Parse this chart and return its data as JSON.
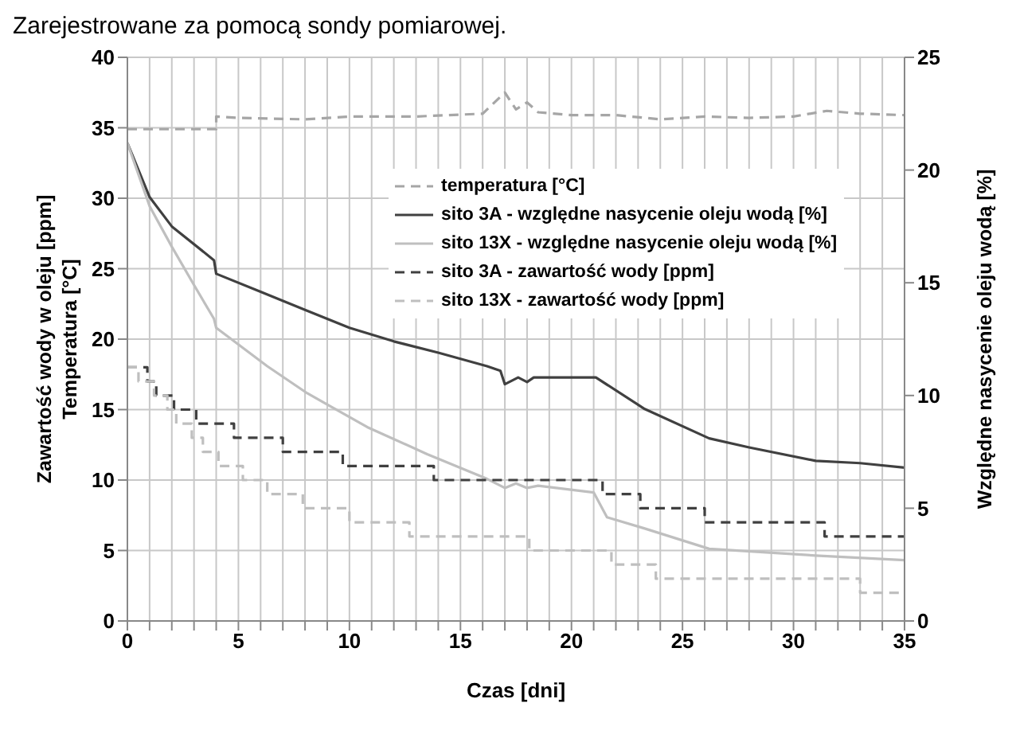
{
  "chart_data": {
    "type": "line",
    "annotations": [
      "Zarejestrowane za pomocą sondy pomiarowej."
    ],
    "xlabel": "Czas [dni]",
    "ylabel": "Zawartość wody w oleju [ppm]\nTemperatura [°C]",
    "y2label": "Względne nasycenie oleju wodą [%]",
    "xlim": [
      0,
      35
    ],
    "xticks": [
      0,
      {
        "value": 1,
        "label": null
      },
      {
        "value": 2,
        "label": null
      },
      {
        "value": 3,
        "label": null
      },
      {
        "value": 4,
        "label": null
      },
      5,
      {
        "value": 6,
        "label": null
      },
      {
        "value": 7,
        "label": null
      },
      {
        "value": 8,
        "label": null
      },
      {
        "value": 9,
        "label": null
      },
      10,
      {
        "value": 11,
        "label": null
      },
      {
        "value": 12,
        "label": null
      },
      {
        "value": 13,
        "label": null
      },
      {
        "value": 14,
        "label": null
      },
      15,
      {
        "value": 16,
        "label": null
      },
      {
        "value": 17,
        "label": null
      },
      {
        "value": 18,
        "label": null
      },
      {
        "value": 19,
        "label": null
      },
      20,
      {
        "value": 21,
        "label": null
      },
      {
        "value": 22,
        "label": null
      },
      {
        "value": 23,
        "label": null
      },
      {
        "value": 24,
        "label": null
      },
      25,
      {
        "value": 26,
        "label": null
      },
      {
        "value": 27,
        "label": null
      },
      {
        "value": 28,
        "label": null
      },
      {
        "value": 29,
        "label": null
      },
      30,
      {
        "value": 31,
        "label": null
      },
      {
        "value": 32,
        "label": null
      },
      {
        "value": 33,
        "label": null
      },
      {
        "value": 34,
        "label": null
      },
      35
    ],
    "ylim": [
      0,
      40
    ],
    "yticks": [
      0,
      5,
      10,
      15,
      20,
      25,
      30,
      35,
      40
    ],
    "y2lim": [
      0,
      25
    ],
    "y2ticks": [
      0,
      5,
      10,
      15,
      20,
      25
    ],
    "grid": true,
    "legend": "top right",
    "marker": "none",
    "series": [
      {
        "name": "temperatura [°C]",
        "color": "#a6a6a6",
        "line_style": "dashed",
        "x": [
          0,
          4,
          4,
          5,
          8,
          10,
          13,
          16,
          17,
          17.5,
          18,
          18.5,
          20,
          22,
          24,
          26,
          28,
          30,
          31.5,
          33,
          35
        ],
        "values": [
          34.9,
          34.9,
          35.8,
          35.7,
          35.6,
          35.8,
          35.8,
          36,
          37.5,
          36.3,
          36.8,
          36.1,
          35.9,
          35.9,
          35.6,
          35.8,
          35.7,
          35.8,
          36.2,
          36,
          35.9
        ]
      },
      {
        "name": "sito 3A - względne nasycenie oleju wodą [%]",
        "color": "#404040",
        "line_style": "solid",
        "axis": "y2",
        "x": [
          0,
          1,
          2,
          3.9,
          4,
          6,
          8,
          10,
          12,
          14,
          16.2,
          16.8,
          17,
          17.6,
          18,
          18.3,
          20,
          21.1,
          23.3,
          26.2,
          28,
          31,
          33,
          35
        ],
        "values": [
          21.2,
          18.8,
          17.5,
          16,
          15.4,
          14.6,
          13.8,
          13,
          12.4,
          11.9,
          11.3,
          11.1,
          10.5,
          10.8,
          10.6,
          10.8,
          10.8,
          10.8,
          9.4,
          8.1,
          7.7,
          7.1,
          7,
          6.8
        ]
      },
      {
        "name": "sito 13X - względne nasycenie oleju wodą [%]",
        "color": "#bfbfbf",
        "line_style": "solid",
        "axis": "y2",
        "x": [
          0,
          1,
          2,
          3,
          3.9,
          4,
          6.3,
          8.1,
          10.8,
          13.5,
          16.2,
          17,
          17.5,
          18,
          18.5,
          21,
          21.6,
          23.3,
          26.2,
          31,
          35
        ],
        "values": [
          21.2,
          18.4,
          16.6,
          14.9,
          13.4,
          13,
          11.3,
          10.1,
          8.6,
          7.4,
          6.3,
          5.9,
          6.1,
          5.9,
          6,
          5.7,
          4.6,
          4.1,
          3.2,
          2.9,
          2.7
        ]
      },
      {
        "name": "sito 3A - zawartość wody [ppm]",
        "type": "step",
        "color": "#404040",
        "line_style": "dashed",
        "x": [
          0,
          0.9,
          1.3,
          2.1,
          3.1,
          4.8,
          7,
          9.7,
          13.8,
          21.4,
          23.1,
          26,
          31.4,
          35
        ],
        "values": [
          18,
          17,
          16,
          15,
          14,
          13,
          12,
          11,
          10,
          9,
          8,
          7,
          6,
          6
        ]
      },
      {
        "name": "sito 13X - zawartość wody [ppm]",
        "type": "step",
        "color": "#bfbfbf",
        "line_style": "dashed",
        "x": [
          0,
          0.5,
          1.2,
          1.8,
          2.2,
          2.9,
          3.4,
          4.1,
          5.2,
          6.3,
          7.9,
          10,
          12.7,
          18.1,
          21.8,
          23.8,
          33,
          35
        ],
        "values": [
          18,
          17,
          16,
          15,
          14,
          13,
          12,
          11,
          10,
          9,
          8,
          7,
          6,
          5,
          4,
          3,
          2,
          2
        ]
      }
    ]
  }
}
